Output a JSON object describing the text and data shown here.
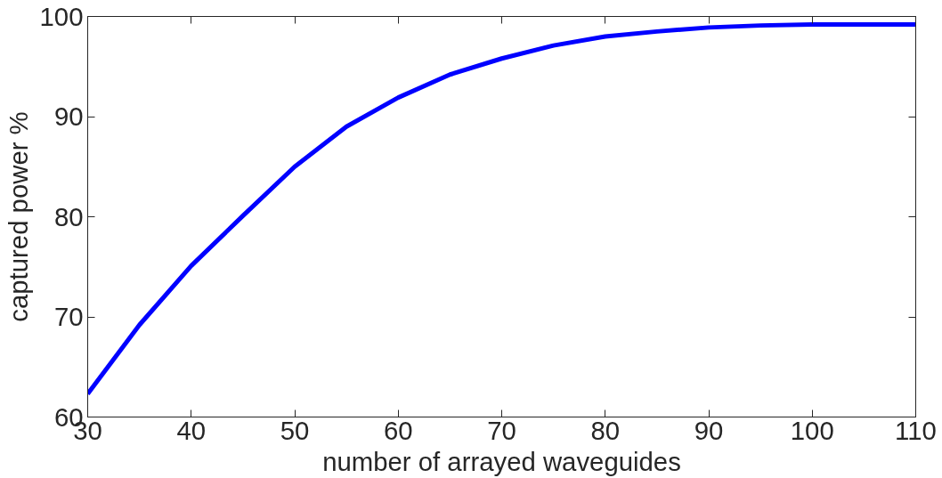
{
  "chart_data": {
    "type": "line",
    "xlabel": "number of arrayed waveguides",
    "ylabel": "captured power %",
    "x": [
      30,
      35,
      40,
      45,
      50,
      55,
      60,
      65,
      70,
      75,
      80,
      85,
      90,
      95,
      100,
      105,
      110
    ],
    "series": [
      {
        "color": "#0000ff",
        "values": [
          62.3,
          69.2,
          75.1,
          80.1,
          85.0,
          89.0,
          91.9,
          94.2,
          95.8,
          97.1,
          98.0,
          98.5,
          98.9,
          99.1,
          99.2,
          99.2,
          99.2
        ]
      }
    ],
    "xlim": [
      30,
      110
    ],
    "ylim": [
      60,
      100
    ],
    "xticks": [
      30,
      40,
      50,
      60,
      70,
      80,
      90,
      100,
      110
    ],
    "yticks": [
      60,
      70,
      80,
      90,
      100
    ],
    "grid": false,
    "marker": "none",
    "line_style": "solid"
  }
}
